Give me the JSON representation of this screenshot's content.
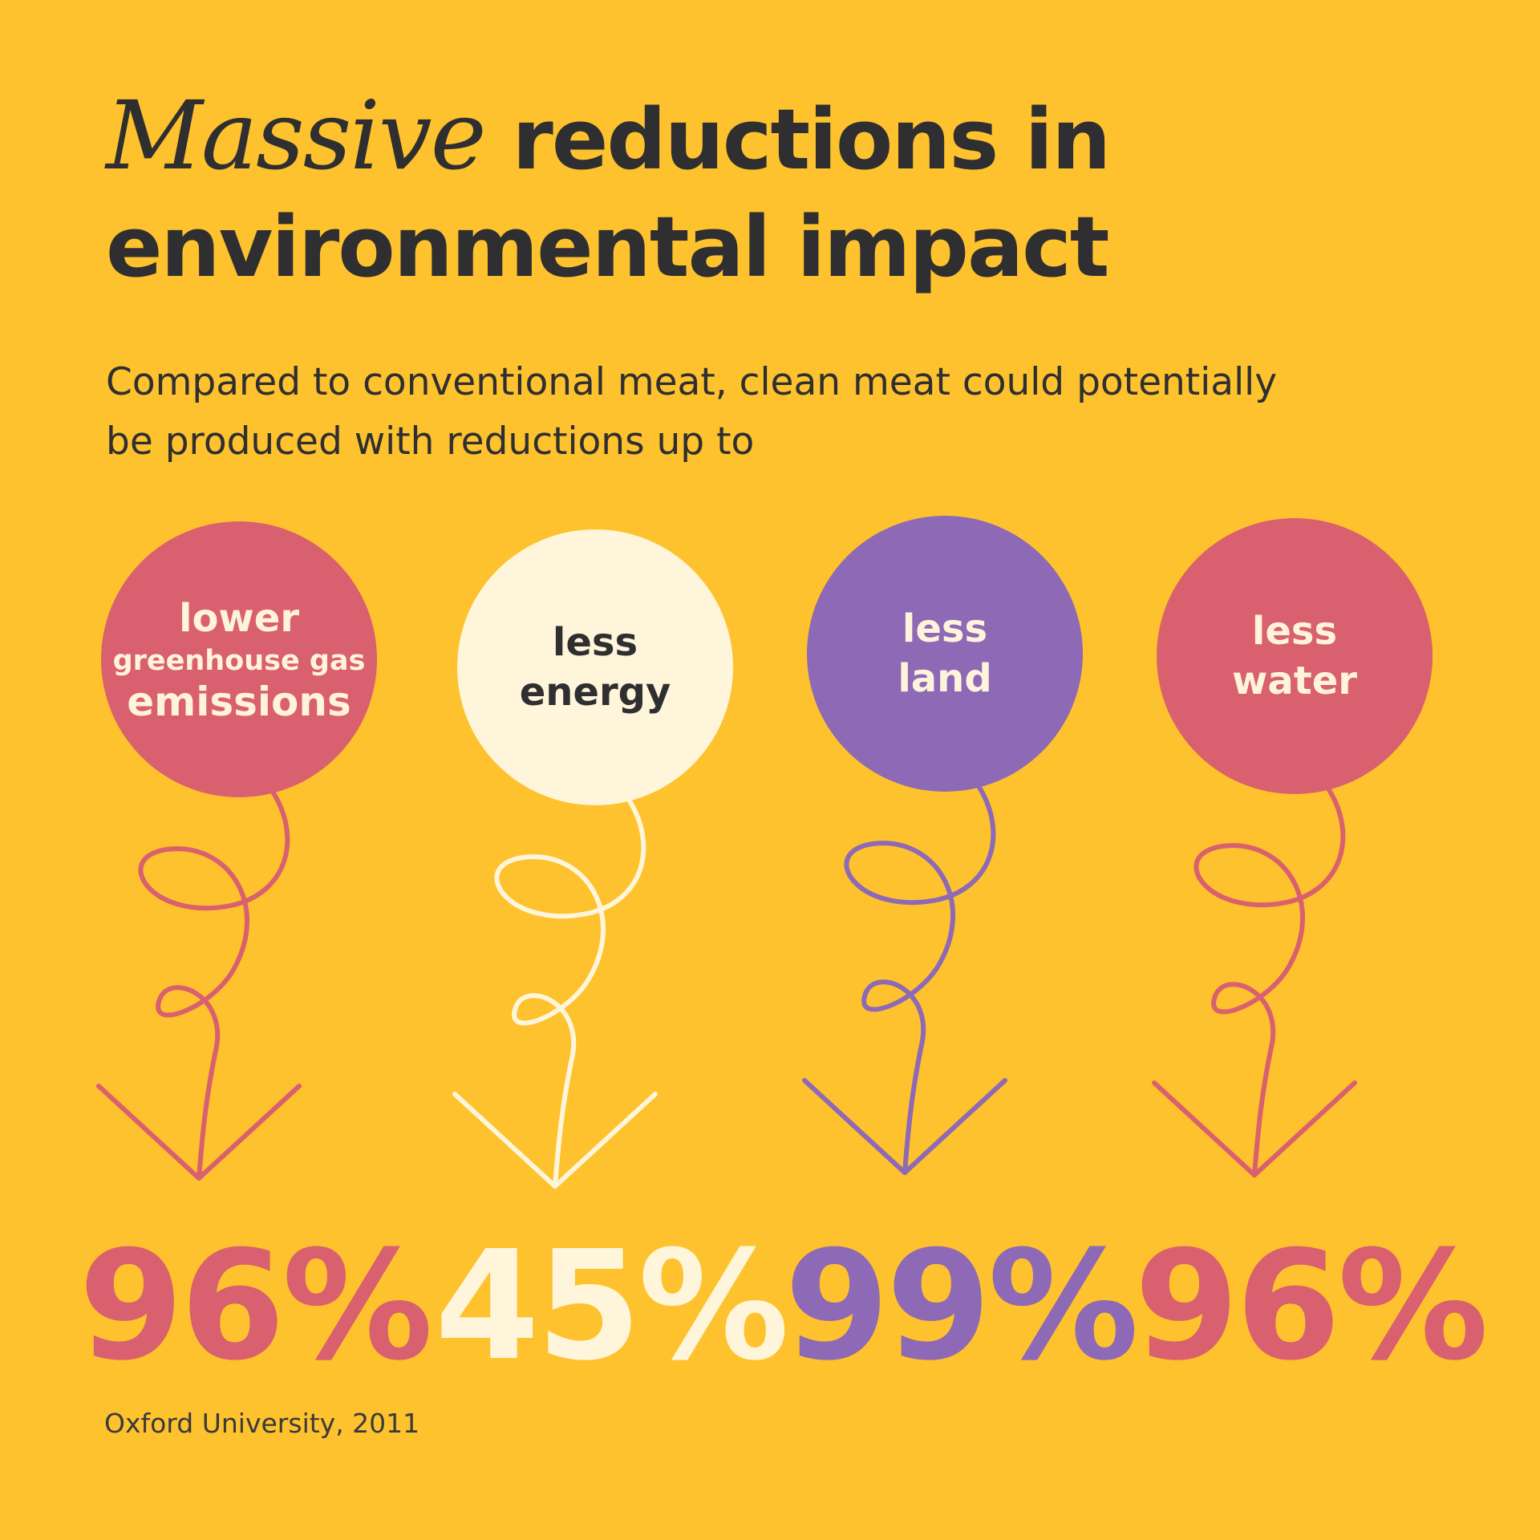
{
  "title": {
    "script_word": "Massive",
    "line1": "reductions in",
    "line2": "environmental impact"
  },
  "subtitle": {
    "line1": "Compared to conventional meat, clean meat could potentially",
    "line2": "be produced with reductions up to"
  },
  "stats": [
    {
      "label_lines": [
        "lower",
        "greenhouse gas",
        "emissions"
      ],
      "percent": "96%",
      "color": "#D9606E",
      "text_color": "#FFF4DB",
      "icon": "curly-arrow-down-icon"
    },
    {
      "label_lines": [
        "less",
        "energy"
      ],
      "percent": "45%",
      "color": "#FFF5DA",
      "text_color": "#2F2F31",
      "icon": "curly-arrow-down-icon"
    },
    {
      "label_lines": [
        "less",
        "land"
      ],
      "percent": "99%",
      "color": "#8D69B6",
      "text_color": "#FFF4DB",
      "icon": "curly-arrow-down-icon"
    },
    {
      "label_lines": [
        "less",
        "water"
      ],
      "percent": "96%",
      "color": "#D9606E",
      "text_color": "#FFF4DB",
      "icon": "curly-arrow-down-icon"
    }
  ],
  "source": "Oxford University, 2011",
  "colors": {
    "background": "#FDC22D",
    "text": "#2F2F31",
    "pink": "#D9606E",
    "cream": "#FFF5DA",
    "purple": "#8D69B6"
  }
}
